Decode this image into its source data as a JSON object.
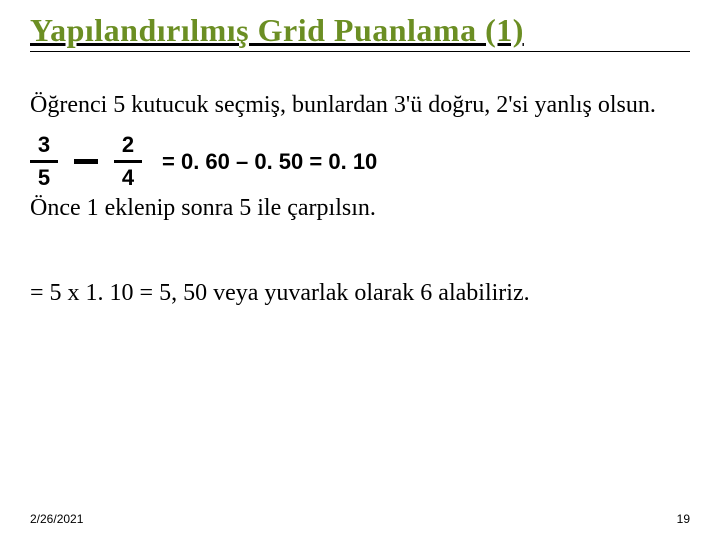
{
  "title": "Yapılandırılmış Grid Puanlama (1)",
  "intro": "Öğrenci 5 kutucuk seçmiş, bunlardan 3'ü doğru, 2'si yanlış olsun.",
  "fraction1": {
    "num": "3",
    "den": "5"
  },
  "fraction2": {
    "num": "2",
    "den": "4"
  },
  "calc_text": "= 0. 60 – 0. 50 = 0. 10",
  "followup": "Önce 1 eklenip sonra 5 ile çarpılsın.",
  "result": "= 5 x 1. 10 = 5, 50 veya yuvarlak olarak 6 alabiliriz.",
  "footer_date": "2/26/2021",
  "footer_page": "19",
  "colors": {
    "title": "#6b8e23",
    "text": "#000000",
    "background": "#ffffff"
  },
  "fonts": {
    "title_size": 32,
    "body_size": 24,
    "calc_size": 22,
    "footer_size": 12
  }
}
